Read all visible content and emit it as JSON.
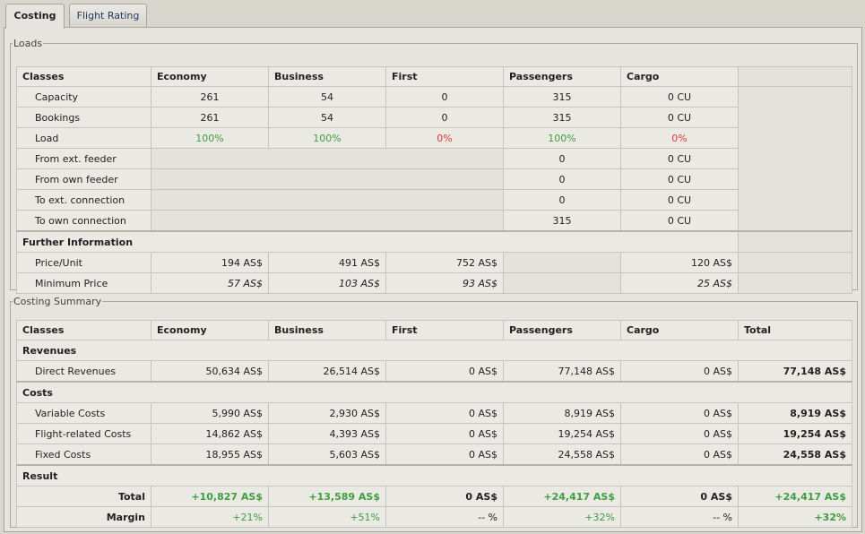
{
  "tabs": [
    "Costing",
    "Flight Rating"
  ],
  "loads": {
    "legend": "Loads",
    "headers": [
      "Classes",
      "Economy",
      "Business",
      "First",
      "Passengers",
      "Cargo"
    ],
    "rows": [
      {
        "label": "Capacity",
        "economy": "261",
        "business": "54",
        "first": "0",
        "passengers": "315",
        "cargo": "0 CU"
      },
      {
        "label": "Bookings",
        "economy": "261",
        "business": "54",
        "first": "0",
        "passengers": "315",
        "cargo": "0 CU"
      },
      {
        "label": "Load",
        "economy": "100%",
        "business": "100%",
        "first": "0%",
        "passengers": "100%",
        "cargo": "0%"
      },
      {
        "label": "From ext. feeder",
        "passengers": "0",
        "cargo": "0 CU"
      },
      {
        "label": "From own feeder",
        "passengers": "0",
        "cargo": "0 CU"
      },
      {
        "label": "To ext. connection",
        "passengers": "0",
        "cargo": "0 CU"
      },
      {
        "label": "To own connection",
        "passengers": "315",
        "cargo": "0 CU"
      }
    ],
    "further_title": "Further Information",
    "further": [
      {
        "label": "Price/Unit",
        "economy": "194 AS$",
        "business": "491 AS$",
        "first": "752 AS$",
        "cargo": "120 AS$"
      },
      {
        "label": "Minimum Price",
        "economy": "57 AS$",
        "business": "103 AS$",
        "first": "93 AS$",
        "cargo": "25 AS$"
      }
    ]
  },
  "summary": {
    "legend": "Costing Summary",
    "headers": [
      "Classes",
      "Economy",
      "Business",
      "First",
      "Passengers",
      "Cargo",
      "Total"
    ],
    "revenues_title": "Revenues",
    "revenues": [
      {
        "label": "Direct Revenues",
        "economy": "50,634 AS$",
        "business": "26,514 AS$",
        "first": "0 AS$",
        "passengers": "77,148 AS$",
        "cargo": "0 AS$",
        "total": "77,148 AS$"
      }
    ],
    "costs_title": "Costs",
    "costs": [
      {
        "label": "Variable Costs",
        "economy": "5,990 AS$",
        "business": "2,930 AS$",
        "first": "0 AS$",
        "passengers": "8,919 AS$",
        "cargo": "0 AS$",
        "total": "8,919 AS$"
      },
      {
        "label": "Flight-related Costs",
        "economy": "14,862 AS$",
        "business": "4,393 AS$",
        "first": "0 AS$",
        "passengers": "19,254 AS$",
        "cargo": "0 AS$",
        "total": "19,254 AS$"
      },
      {
        "label": "Fixed Costs",
        "economy": "18,955 AS$",
        "business": "5,603 AS$",
        "first": "0 AS$",
        "passengers": "24,558 AS$",
        "cargo": "0 AS$",
        "total": "24,558 AS$"
      }
    ],
    "result_title": "Result",
    "result": [
      {
        "label": "Total",
        "economy": "+10,827 AS$",
        "business": "+13,589 AS$",
        "first": "0 AS$",
        "passengers": "+24,417 AS$",
        "cargo": "0 AS$",
        "total": "+24,417 AS$"
      },
      {
        "label": "Margin",
        "economy": "+21%",
        "business": "+51%",
        "first": "-- %",
        "passengers": "+32%",
        "cargo": "-- %",
        "total": "+32%"
      }
    ]
  },
  "colors": {
    "positive": "#3f9e3f",
    "negative": "#d23c3c"
  }
}
